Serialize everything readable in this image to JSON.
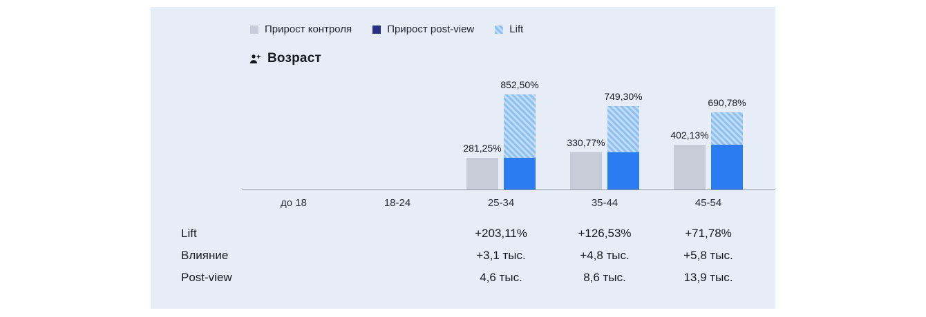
{
  "card": {
    "title_icon": "person-plus-icon"
  },
  "chart_data": {
    "type": "bar",
    "title": "Возраст",
    "legend_position": "top",
    "grid": false,
    "categories": [
      "до 18",
      "18-24",
      "25-34",
      "35-44",
      "45-54"
    ],
    "series": [
      {
        "name": "Прирост контроля",
        "values": [
          null,
          null,
          281.25,
          330.77,
          402.13
        ],
        "display_labels": [
          "",
          "",
          "281,25%",
          "330,77%",
          "402,13%"
        ]
      },
      {
        "name": "Прирост post-view",
        "values": [
          null,
          null,
          852.5,
          749.3,
          690.78
        ],
        "display_labels": [
          "",
          "",
          "852,50%",
          "749,30%",
          "690,78%"
        ]
      }
    ],
    "ylim": [
      0,
      900
    ],
    "legend": [
      {
        "label": "Прирост контроля"
      },
      {
        "label": "Прирост post-view"
      },
      {
        "label": "Lift"
      }
    ],
    "colors": {
      "control": "#c7ccd9",
      "postview": "#2b7cf0",
      "postview_legend": "#2a2f86",
      "lift_fill": "#c0dcf7",
      "lift_stripe": "#8fc0ee",
      "card_background": "#e7edf7",
      "axis": "#8d939e"
    },
    "summary_table": {
      "row_labels": [
        "Lift",
        "Влияние",
        "Post-view"
      ],
      "columns": [
        "25-34",
        "35-44",
        "45-54"
      ],
      "rows": [
        [
          "+203,11%",
          "+126,53%",
          "+71,78%"
        ],
        [
          "+3,1 тыс.",
          "+4,8 тыс.",
          "+5,8 тыс."
        ],
        [
          "4,6 тыс.",
          "8,6 тыс.",
          "13,9 тыс."
        ]
      ]
    }
  }
}
